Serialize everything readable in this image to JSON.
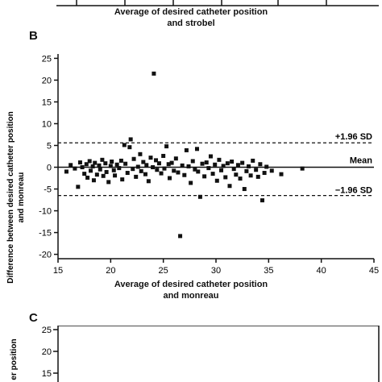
{
  "panel_a": {
    "xlabel_line1": "Average of desired catheter position",
    "xlabel_line2": "and strobel"
  },
  "panel_b": {
    "letter": "B",
    "ylabel_line1": "Difference between desired catheter position",
    "ylabel_line2": "and monreau",
    "xlabel_line1": "Average of desired catheter position",
    "xlabel_line2": "and monreau",
    "upper_label": "+1.96 SD",
    "mean_label": "Mean",
    "lower_label": "−1.96 SD"
  },
  "panel_c": {
    "letter": "C",
    "ylabel_fragment": "er position",
    "ytick_labels": [
      "25",
      "20",
      "15"
    ]
  },
  "chart_data": [
    {
      "type": "scatter",
      "panel": "B",
      "xlabel": "Average of desired catheter position and monreau",
      "ylabel": "Difference between desired catheter position and monreau",
      "xlim": [
        15,
        45
      ],
      "ylim": [
        -21,
        26
      ],
      "xticks": [
        15,
        20,
        25,
        30,
        35,
        40,
        45
      ],
      "yticks": [
        25,
        20,
        15,
        10,
        5,
        0,
        -5,
        -10,
        -15,
        -20
      ],
      "mean": 0,
      "upper_loa": 5.6,
      "lower_loa": -6.5,
      "marker_color": "#111111",
      "points": [
        [
          15.8,
          -1.0
        ],
        [
          16.2,
          0.5
        ],
        [
          16.6,
          -0.3
        ],
        [
          16.9,
          -4.5
        ],
        [
          17.1,
          1.1
        ],
        [
          17.3,
          0.0
        ],
        [
          17.5,
          -1.5
        ],
        [
          17.7,
          0.7
        ],
        [
          17.8,
          -2.4
        ],
        [
          18.0,
          1.4
        ],
        [
          18.1,
          -0.8
        ],
        [
          18.3,
          0.2
        ],
        [
          18.4,
          -3.0
        ],
        [
          18.5,
          1.0
        ],
        [
          18.7,
          -1.7
        ],
        [
          18.9,
          0.4
        ],
        [
          19.0,
          -0.5
        ],
        [
          19.2,
          1.7
        ],
        [
          19.3,
          -2.0
        ],
        [
          19.5,
          0.9
        ],
        [
          19.6,
          -1.1
        ],
        [
          19.8,
          -3.4
        ],
        [
          20.0,
          0.3
        ],
        [
          20.1,
          1.3
        ],
        [
          20.3,
          -0.7
        ],
        [
          20.4,
          -1.9
        ],
        [
          20.6,
          0.6
        ],
        [
          20.8,
          -0.2
        ],
        [
          21.0,
          1.5
        ],
        [
          21.1,
          -2.8
        ],
        [
          21.3,
          5.1
        ],
        [
          21.4,
          0.8
        ],
        [
          21.6,
          -1.3
        ],
        [
          21.8,
          4.6
        ],
        [
          21.9,
          6.4
        ],
        [
          22.1,
          -0.4
        ],
        [
          22.2,
          1.9
        ],
        [
          22.4,
          -2.2
        ],
        [
          22.6,
          0.1
        ],
        [
          22.8,
          3.0
        ],
        [
          22.9,
          -0.9
        ],
        [
          23.1,
          1.2
        ],
        [
          23.3,
          -1.6
        ],
        [
          23.4,
          0.5
        ],
        [
          23.6,
          -3.2
        ],
        [
          23.8,
          2.2
        ],
        [
          24.0,
          0.0
        ],
        [
          24.1,
          21.5
        ],
        [
          24.3,
          1.6
        ],
        [
          24.4,
          -0.6
        ],
        [
          24.6,
          0.9
        ],
        [
          24.8,
          -1.4
        ],
        [
          25.0,
          2.6
        ],
        [
          25.1,
          -0.3
        ],
        [
          25.3,
          4.8
        ],
        [
          25.5,
          0.7
        ],
        [
          25.6,
          -2.5
        ],
        [
          25.8,
          1.0
        ],
        [
          26.0,
          -0.8
        ],
        [
          26.2,
          2.0
        ],
        [
          26.4,
          -1.2
        ],
        [
          26.6,
          -15.8
        ],
        [
          26.8,
          0.4
        ],
        [
          27.0,
          -1.8
        ],
        [
          27.2,
          3.9
        ],
        [
          27.4,
          0.2
        ],
        [
          27.6,
          -3.6
        ],
        [
          27.8,
          1.4
        ],
        [
          28.0,
          -0.5
        ],
        [
          28.2,
          4.2
        ],
        [
          28.3,
          -1.0
        ],
        [
          28.5,
          -6.8
        ],
        [
          28.7,
          0.8
        ],
        [
          28.9,
          -2.1
        ],
        [
          29.1,
          1.1
        ],
        [
          29.3,
          -0.2
        ],
        [
          29.5,
          2.5
        ],
        [
          29.7,
          -1.5
        ],
        [
          29.9,
          0.6
        ],
        [
          30.1,
          -3.1
        ],
        [
          30.3,
          1.7
        ],
        [
          30.5,
          -0.7
        ],
        [
          30.7,
          0.3
        ],
        [
          30.9,
          -2.3
        ],
        [
          31.1,
          0.9
        ],
        [
          31.3,
          -4.3
        ],
        [
          31.5,
          1.3
        ],
        [
          31.7,
          -0.4
        ],
        [
          31.9,
          -1.7
        ],
        [
          32.1,
          0.5
        ],
        [
          32.3,
          -2.6
        ],
        [
          32.5,
          1.0
        ],
        [
          32.7,
          -5.0
        ],
        [
          32.9,
          -0.9
        ],
        [
          33.1,
          0.2
        ],
        [
          33.3,
          -1.9
        ],
        [
          33.5,
          1.5
        ],
        [
          33.8,
          -0.6
        ],
        [
          34.0,
          -2.2
        ],
        [
          34.2,
          0.7
        ],
        [
          34.4,
          -7.6
        ],
        [
          34.6,
          -1.3
        ],
        [
          34.8,
          0.1
        ],
        [
          35.3,
          -0.8
        ],
        [
          36.2,
          -1.6
        ],
        [
          38.2,
          -0.3
        ]
      ]
    }
  ]
}
